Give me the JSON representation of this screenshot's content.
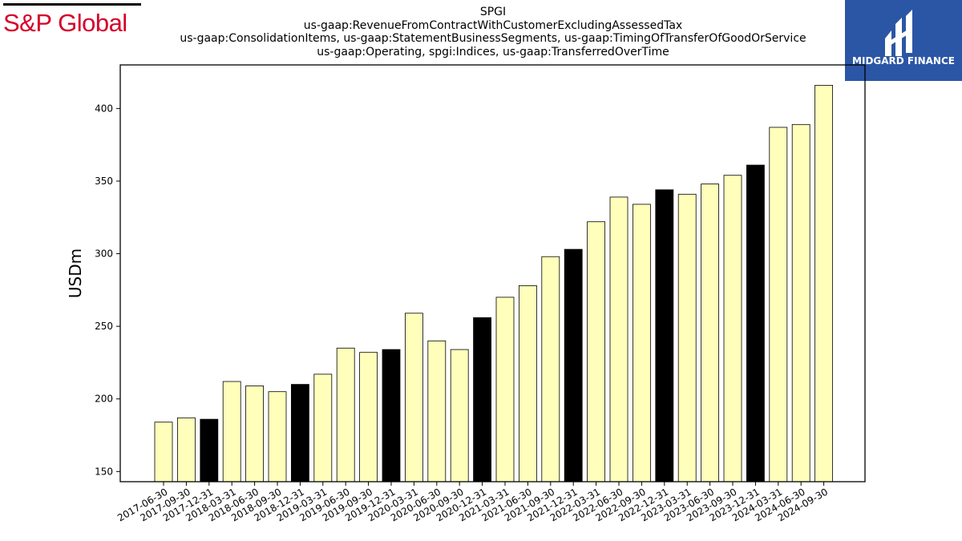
{
  "branding": {
    "left_logo_text": "S&P Global",
    "right_logo_text": "MIDGARD FINANCE",
    "left_logo_color": "#d6002a",
    "right_logo_bg": "#2b56a5"
  },
  "colors": {
    "bar_fill": "#ffffbb",
    "bar_fill_q4": "#000000",
    "bar_edge": "#000000"
  },
  "chart_data": {
    "type": "bar",
    "title_lines": [
      "SPGI",
      "us-gaap:RevenueFromContractWithCustomerExcludingAssessedTax",
      "us-gaap:ConsolidationItems, us-gaap:StatementBusinessSegments, us-gaap:TimingOfTransferOfGoodOrService",
      "us-gaap:Operating, spgi:Indices, us-gaap:TransferredOverTime"
    ],
    "ylabel": "USDm",
    "xlabel": "",
    "ylim": [
      143,
      430
    ],
    "yticks": [
      150,
      200,
      250,
      300,
      350,
      400
    ],
    "grid": false,
    "legend": "none",
    "categories": [
      "2017-06-30",
      "2017-09-30",
      "2017-12-31",
      "2018-03-31",
      "2018-06-30",
      "2018-09-30",
      "2018-12-31",
      "2019-03-31",
      "2019-06-30",
      "2019-09-30",
      "2019-12-31",
      "2020-03-31",
      "2020-06-30",
      "2020-09-30",
      "2020-12-31",
      "2021-03-31",
      "2021-06-30",
      "2021-09-30",
      "2021-12-31",
      "2022-03-31",
      "2022-06-30",
      "2022-09-30",
      "2022-12-31",
      "2023-03-31",
      "2023-06-30",
      "2023-09-30",
      "2023-12-31",
      "2024-03-31",
      "2024-06-30",
      "2024-09-30"
    ],
    "values": [
      184,
      187,
      186,
      212,
      209,
      205,
      210,
      217,
      235,
      232,
      234,
      259,
      240,
      234,
      256,
      270,
      278,
      298,
      303,
      322,
      339,
      334,
      344,
      341,
      348,
      354,
      361,
      387,
      389,
      416
    ],
    "highlight": [
      false,
      false,
      true,
      false,
      false,
      false,
      true,
      false,
      false,
      false,
      true,
      false,
      false,
      false,
      true,
      false,
      false,
      false,
      true,
      false,
      false,
      false,
      true,
      false,
      false,
      false,
      true,
      false,
      false,
      false
    ]
  }
}
